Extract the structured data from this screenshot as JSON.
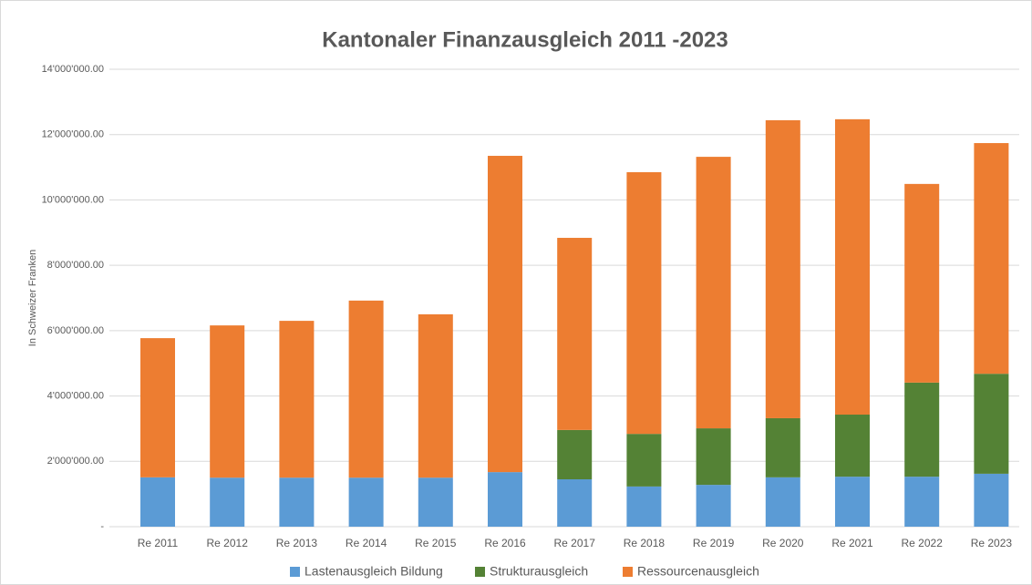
{
  "chart_data": {
    "type": "stacked_bar",
    "title": "Kantonaler Finanzausgleich 2011 -2023",
    "y_label": "In Schweizer Franken",
    "categories": [
      "Re 2011",
      "Re 2012",
      "Re 2013",
      "Re 2014",
      "Re 2015",
      "Re 2016",
      "Re 2017",
      "Re 2018",
      "Re 2019",
      "Re 2020",
      "Re 2021",
      "Re 2022",
      "Re 2023"
    ],
    "series": [
      {
        "name": "Lastenausgleich Bildung",
        "color": "#5b9bd5",
        "values": [
          1510000,
          1500000,
          1500000,
          1500000,
          1500000,
          1670000,
          1450000,
          1230000,
          1280000,
          1510000,
          1530000,
          1530000,
          1620000
        ]
      },
      {
        "name": "Strukturausgleich",
        "color": "#548235",
        "values": [
          0,
          0,
          0,
          0,
          0,
          0,
          1510000,
          1610000,
          1730000,
          1810000,
          1900000,
          2880000,
          3060000
        ]
      },
      {
        "name": "Ressourcenausgleich",
        "color": "#ed7d31",
        "values": [
          4260000,
          4660000,
          4800000,
          5420000,
          5000000,
          9680000,
          5880000,
          8010000,
          8310000,
          9120000,
          9040000,
          6080000,
          7060000
        ]
      }
    ],
    "ylim": [
      0,
      14000000
    ],
    "yticks": [
      {
        "value": 0,
        "label": "-"
      },
      {
        "value": 2000000,
        "label": "2'000'000.00"
      },
      {
        "value": 4000000,
        "label": "4'000'000.00"
      },
      {
        "value": 6000000,
        "label": "6'000'000.00"
      },
      {
        "value": 8000000,
        "label": "8'000'000.00"
      },
      {
        "value": 10000000,
        "label": "10'000'000.00"
      },
      {
        "value": 12000000,
        "label": "12'000'000.00"
      },
      {
        "value": 14000000,
        "label": "14'000'000.00"
      }
    ],
    "grid": true,
    "legend": "bottom"
  }
}
